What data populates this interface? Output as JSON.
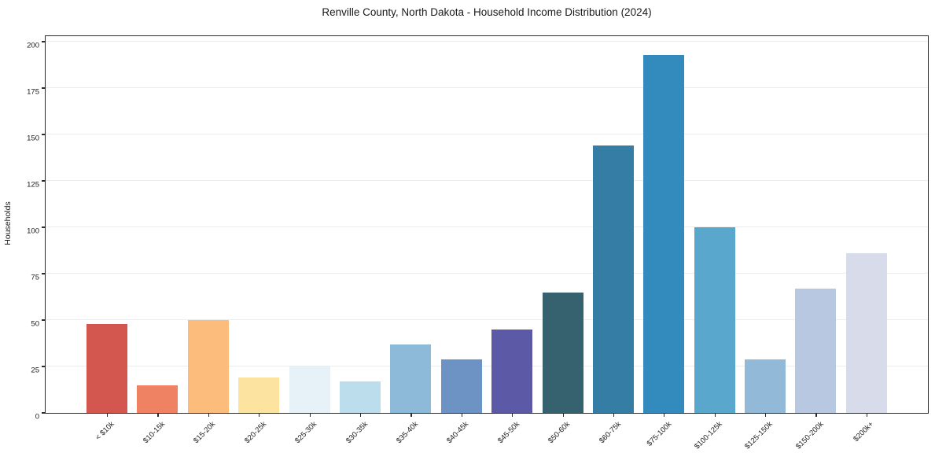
{
  "chart_data": {
    "type": "bar",
    "title": "Renville County, North Dakota - Household Income Distribution (2024)",
    "xlabel": "",
    "ylabel": "Households",
    "categories": [
      "< $10k",
      "$10-15k",
      "$15-20k",
      "$20-25k",
      "$25-30k",
      "$30-35k",
      "$35-40k",
      "$40-45k",
      "$45-50k",
      "$50-60k",
      "$60-75k",
      "$75-100k",
      "$100-125k",
      "$125-150k",
      "$150-200k",
      "$200k+"
    ],
    "values": [
      48,
      15,
      50,
      19,
      25,
      17,
      37,
      29,
      45,
      65,
      144,
      193,
      100,
      29,
      67,
      86
    ],
    "bar_colors": [
      "#d4574f",
      "#f08264",
      "#fcbd7c",
      "#fde3a0",
      "#e6f2f7",
      "#bbddec",
      "#8dbad8",
      "#6c93c4",
      "#5c5aa7",
      "#36616f",
      "#357da4",
      "#338abc",
      "#5aa7cd",
      "#93b9d8",
      "#b8c8e1",
      "#d8dbe9"
    ],
    "yticks": [
      0,
      25,
      50,
      75,
      100,
      125,
      150,
      175,
      200
    ],
    "ylim": [
      0,
      203
    ],
    "grid": "horizontal-light",
    "legend": "none"
  },
  "colors": {
    "background": "#ffffff",
    "gridline": "#ececec",
    "spine": "#2b2b2b",
    "text": "#1a1a1a"
  }
}
